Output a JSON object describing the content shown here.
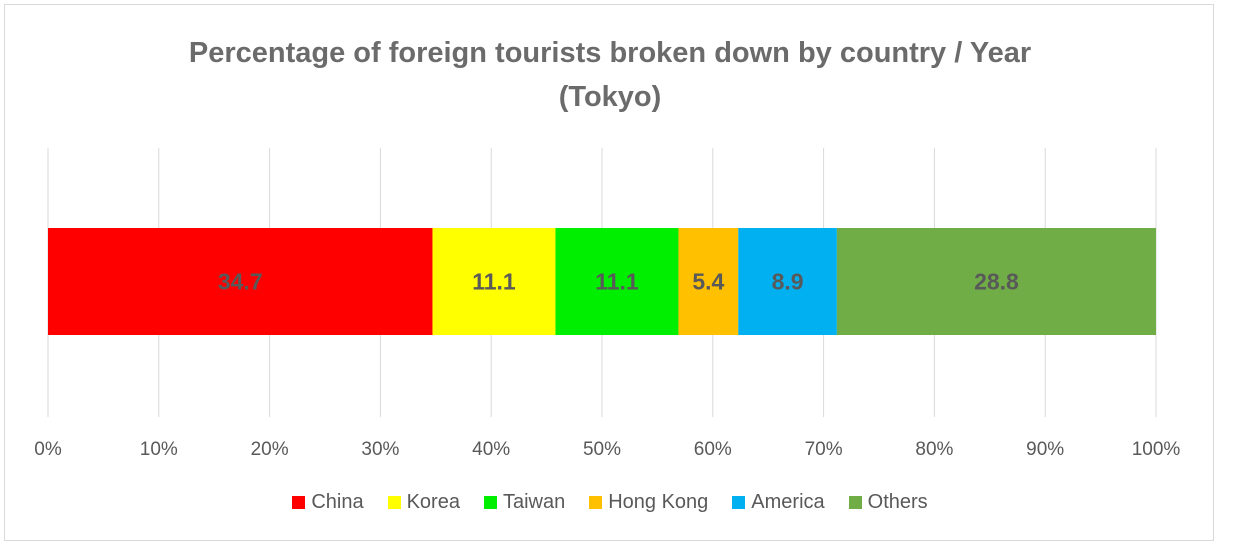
{
  "chart_data": {
    "type": "bar",
    "orientation": "horizontal",
    "stacked": true,
    "title_lines": [
      "Percentage of foreign tourists broken down by country / Year",
      "(Tokyo)"
    ],
    "xlim": [
      0,
      100
    ],
    "x_ticks": [
      0,
      10,
      20,
      30,
      40,
      50,
      60,
      70,
      80,
      90,
      100
    ],
    "x_tick_labels": [
      "0%",
      "10%",
      "20%",
      "30%",
      "40%",
      "50%",
      "60%",
      "70%",
      "80%",
      "90%",
      "100%"
    ],
    "grid": true,
    "legend_position": "bottom",
    "series": [
      {
        "name": "China",
        "value": 34.7,
        "label": "34.7",
        "color": "#ff0000"
      },
      {
        "name": "Korea",
        "value": 11.1,
        "label": "11.1",
        "color": "#ffff00"
      },
      {
        "name": "Taiwan",
        "value": 11.1,
        "label": "11.1",
        "color": "#00ee00"
      },
      {
        "name": "Hong Kong",
        "value": 5.4,
        "label": "5.4",
        "color": "#ffc000"
      },
      {
        "name": "America",
        "value": 8.9,
        "label": "8.9",
        "color": "#00b0f0"
      },
      {
        "name": "Others",
        "value": 28.8,
        "label": "28.8",
        "color": "#70ad47"
      }
    ]
  }
}
